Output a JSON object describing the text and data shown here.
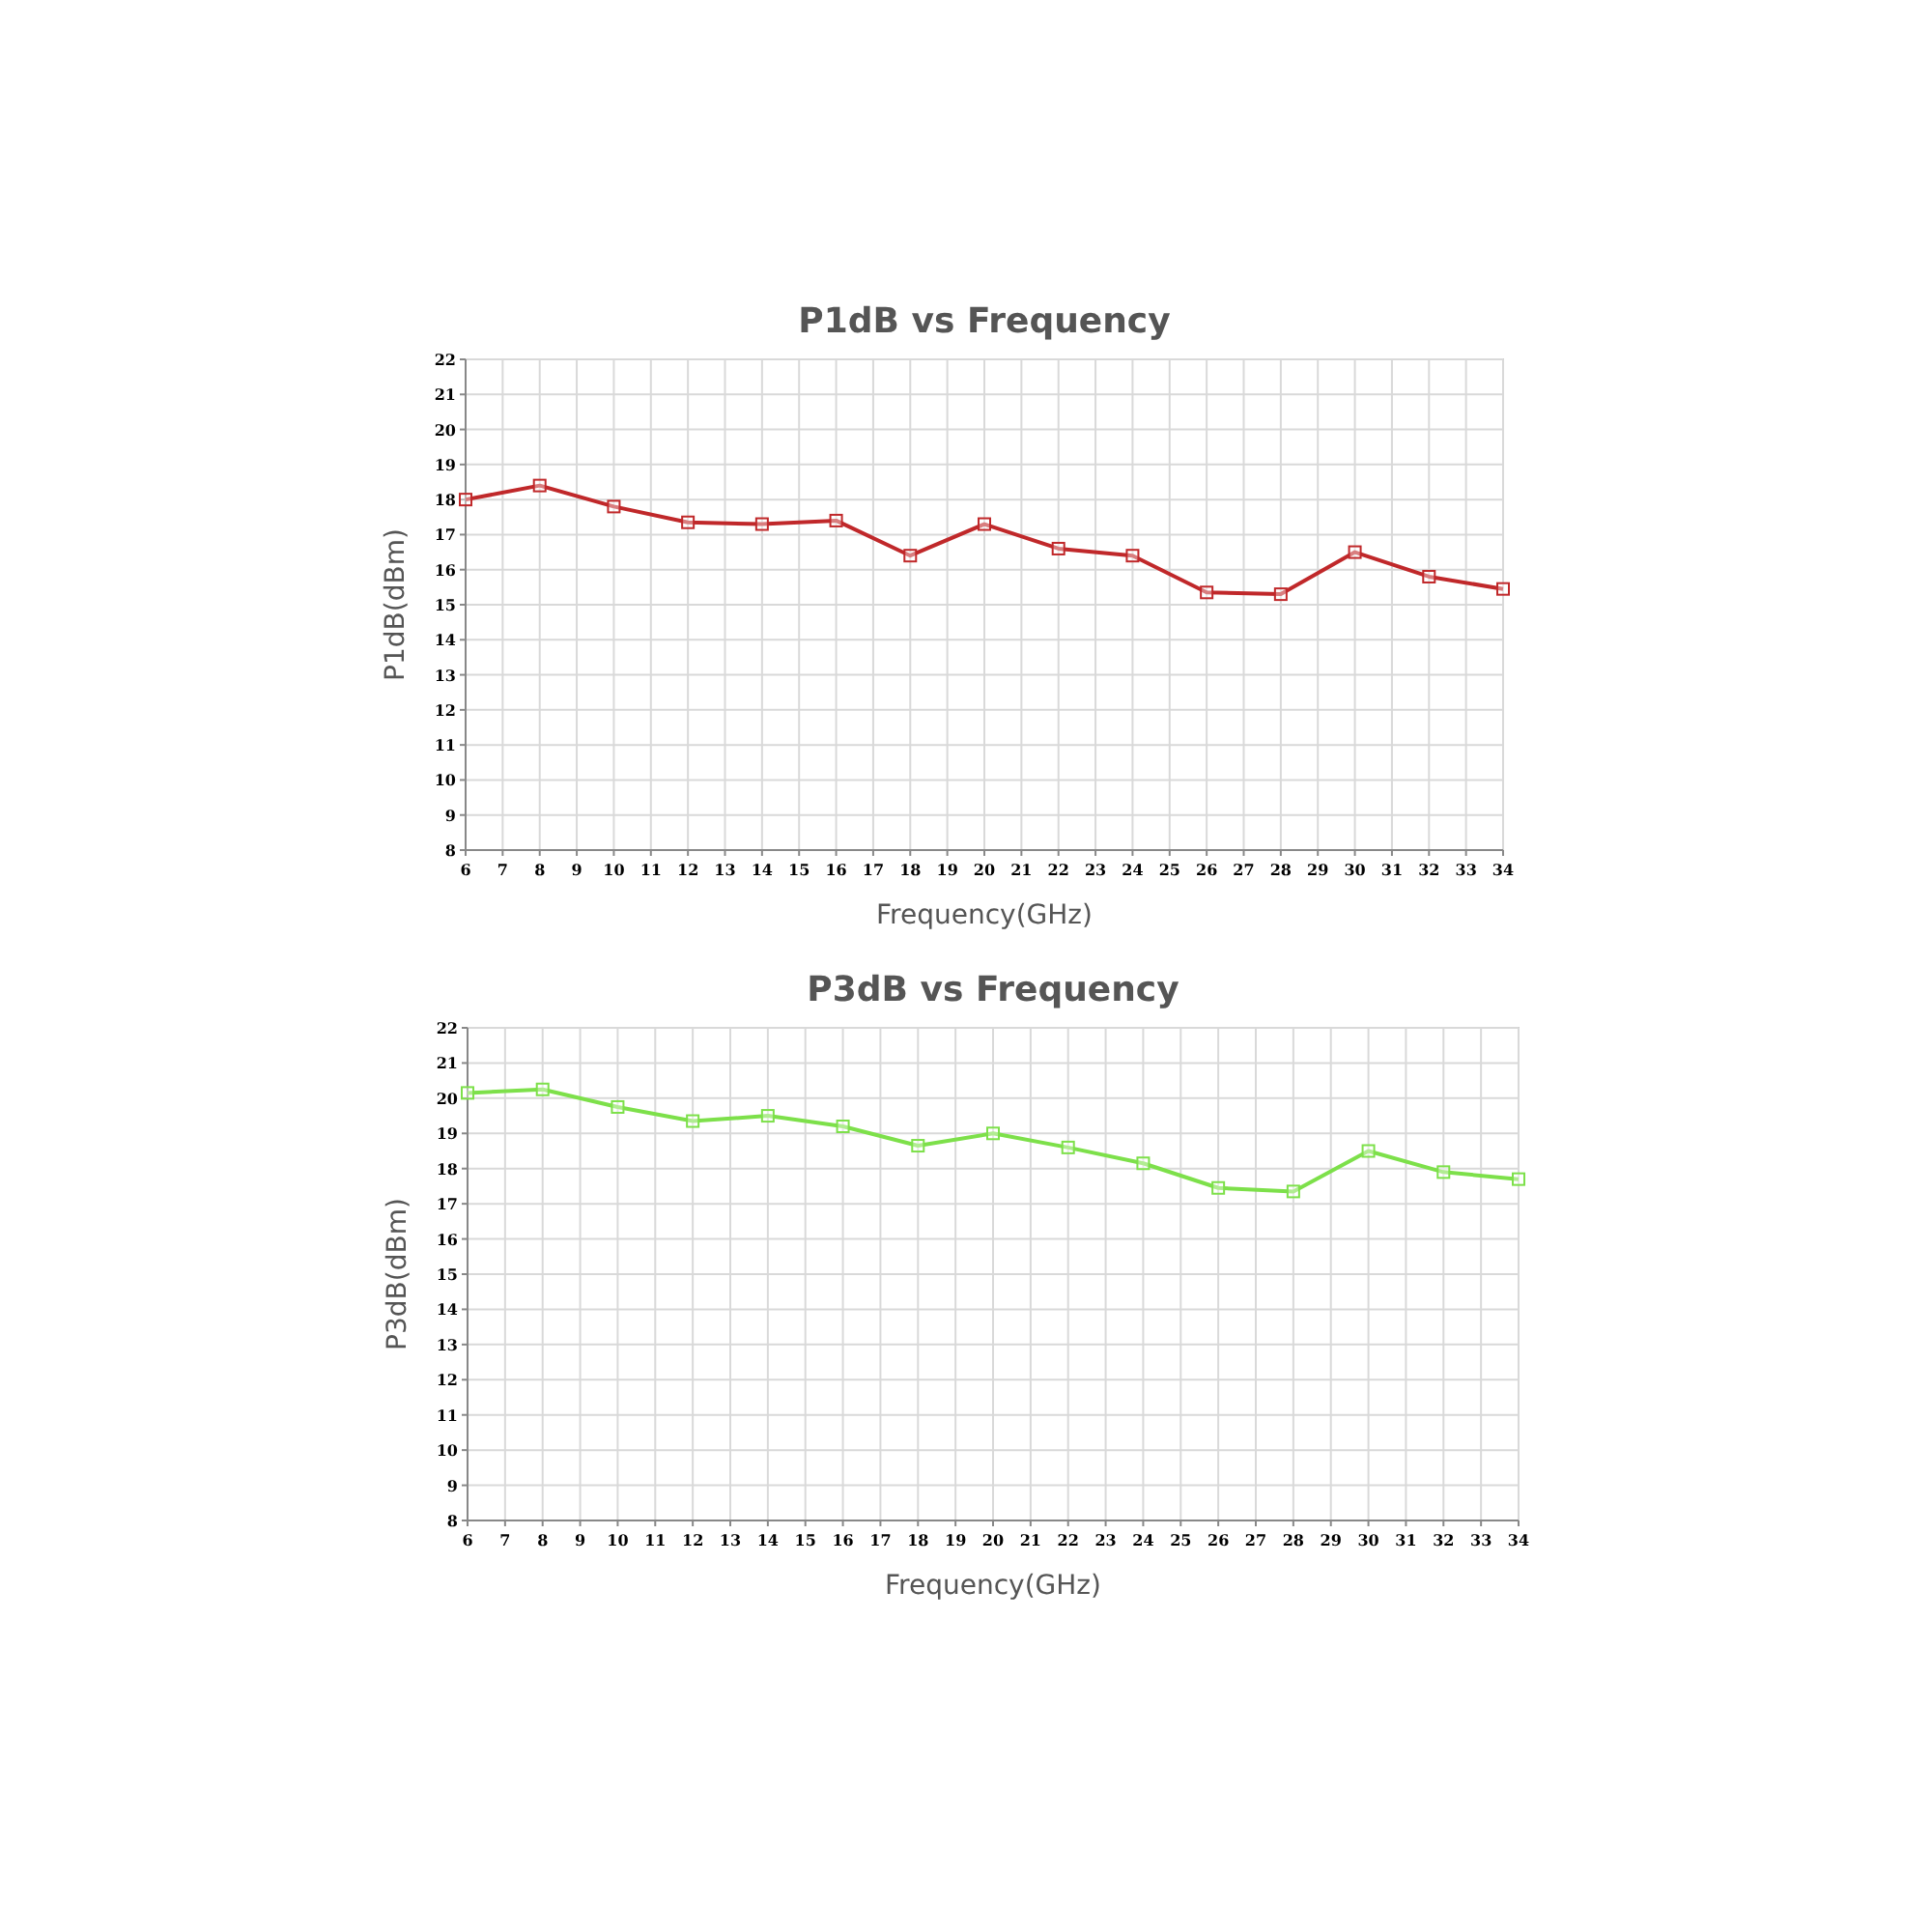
{
  "chart_data": [
    {
      "type": "line",
      "title": "P1dB vs Frequency",
      "xlabel": "Frequency(GHz)",
      "ylabel": "P1dB(dBm)",
      "x": [
        6,
        8,
        10,
        12,
        14,
        16,
        18,
        20,
        22,
        24,
        26,
        28,
        30,
        32,
        34
      ],
      "series": [
        {
          "color": "#c0282a",
          "values": [
            18.0,
            18.4,
            17.8,
            17.35,
            17.3,
            17.4,
            16.4,
            17.3,
            16.6,
            16.4,
            15.35,
            15.3,
            16.5,
            15.8,
            15.45
          ]
        }
      ],
      "xlim": [
        6,
        34
      ],
      "xticks": [
        6,
        7,
        8,
        9,
        10,
        11,
        12,
        13,
        14,
        15,
        16,
        17,
        18,
        19,
        20,
        21,
        22,
        23,
        24,
        25,
        26,
        27,
        28,
        29,
        30,
        31,
        32,
        33,
        34
      ],
      "ylim": [
        8,
        22
      ],
      "yticks": [
        8,
        9,
        10,
        11,
        12,
        13,
        14,
        15,
        16,
        17,
        18,
        19,
        20,
        21,
        22
      ],
      "grid": true,
      "marker": "square"
    },
    {
      "type": "line",
      "title": "P3dB vs Frequency",
      "xlabel": "Frequency(GHz)",
      "ylabel": "P3dB(dBm)",
      "x": [
        6,
        8,
        10,
        12,
        14,
        16,
        18,
        20,
        22,
        24,
        26,
        28,
        30,
        32,
        34
      ],
      "series": [
        {
          "color": "#7de04a",
          "values": [
            20.15,
            20.25,
            19.75,
            19.35,
            19.5,
            19.2,
            18.65,
            19.0,
            18.6,
            18.15,
            17.45,
            17.35,
            18.5,
            17.9,
            17.7
          ]
        }
      ],
      "xlim": [
        6,
        34
      ],
      "xticks": [
        6,
        7,
        8,
        9,
        10,
        11,
        12,
        13,
        14,
        15,
        16,
        17,
        18,
        19,
        20,
        21,
        22,
        23,
        24,
        25,
        26,
        27,
        28,
        29,
        30,
        31,
        32,
        33,
        34
      ],
      "ylim": [
        8,
        22
      ],
      "yticks": [
        8,
        9,
        10,
        11,
        12,
        13,
        14,
        15,
        16,
        17,
        18,
        19,
        20,
        21,
        22
      ],
      "grid": true,
      "marker": "square"
    }
  ]
}
